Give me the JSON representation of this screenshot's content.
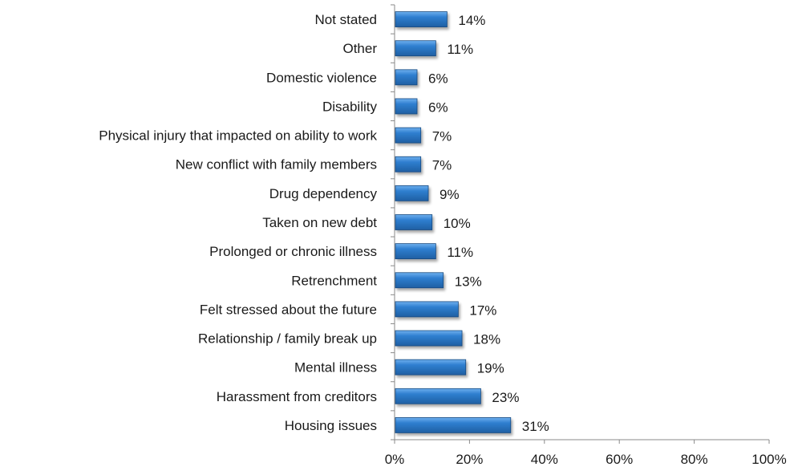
{
  "chart_data": {
    "type": "bar",
    "orientation": "horizontal",
    "categories": [
      "Not stated",
      "Other",
      "Domestic violence",
      "Disability",
      "Physical injury that impacted on ability to work",
      "New conflict with family members",
      "Drug dependency",
      "Taken on new debt",
      "Prolonged or chronic illness",
      "Retrenchment",
      "Felt stressed about the future",
      "Relationship / family break up",
      "Mental illness",
      "Harassment from creditors",
      "Housing issues"
    ],
    "values": [
      14,
      11,
      6,
      6,
      7,
      7,
      9,
      10,
      11,
      13,
      17,
      18,
      19,
      23,
      31
    ],
    "value_labels": [
      "14%",
      "11%",
      "6%",
      "6%",
      "7%",
      "7%",
      "9%",
      "10%",
      "11%",
      "13%",
      "17%",
      "18%",
      "19%",
      "23%",
      "31%"
    ],
    "xlim": [
      0,
      100
    ],
    "x_ticks": [
      0,
      20,
      40,
      60,
      80,
      100
    ],
    "x_tick_labels": [
      "0%",
      "20%",
      "40%",
      "60%",
      "80%",
      "100%"
    ],
    "grid": false,
    "legend": "none",
    "title": "",
    "xlabel": "",
    "ylabel": "",
    "colors": {
      "bar_dark": "#1f5fa3",
      "bar_mid": "#2f7fd0",
      "bar_light": "#6fb0ee",
      "bar_stroke": "#174a80"
    }
  }
}
